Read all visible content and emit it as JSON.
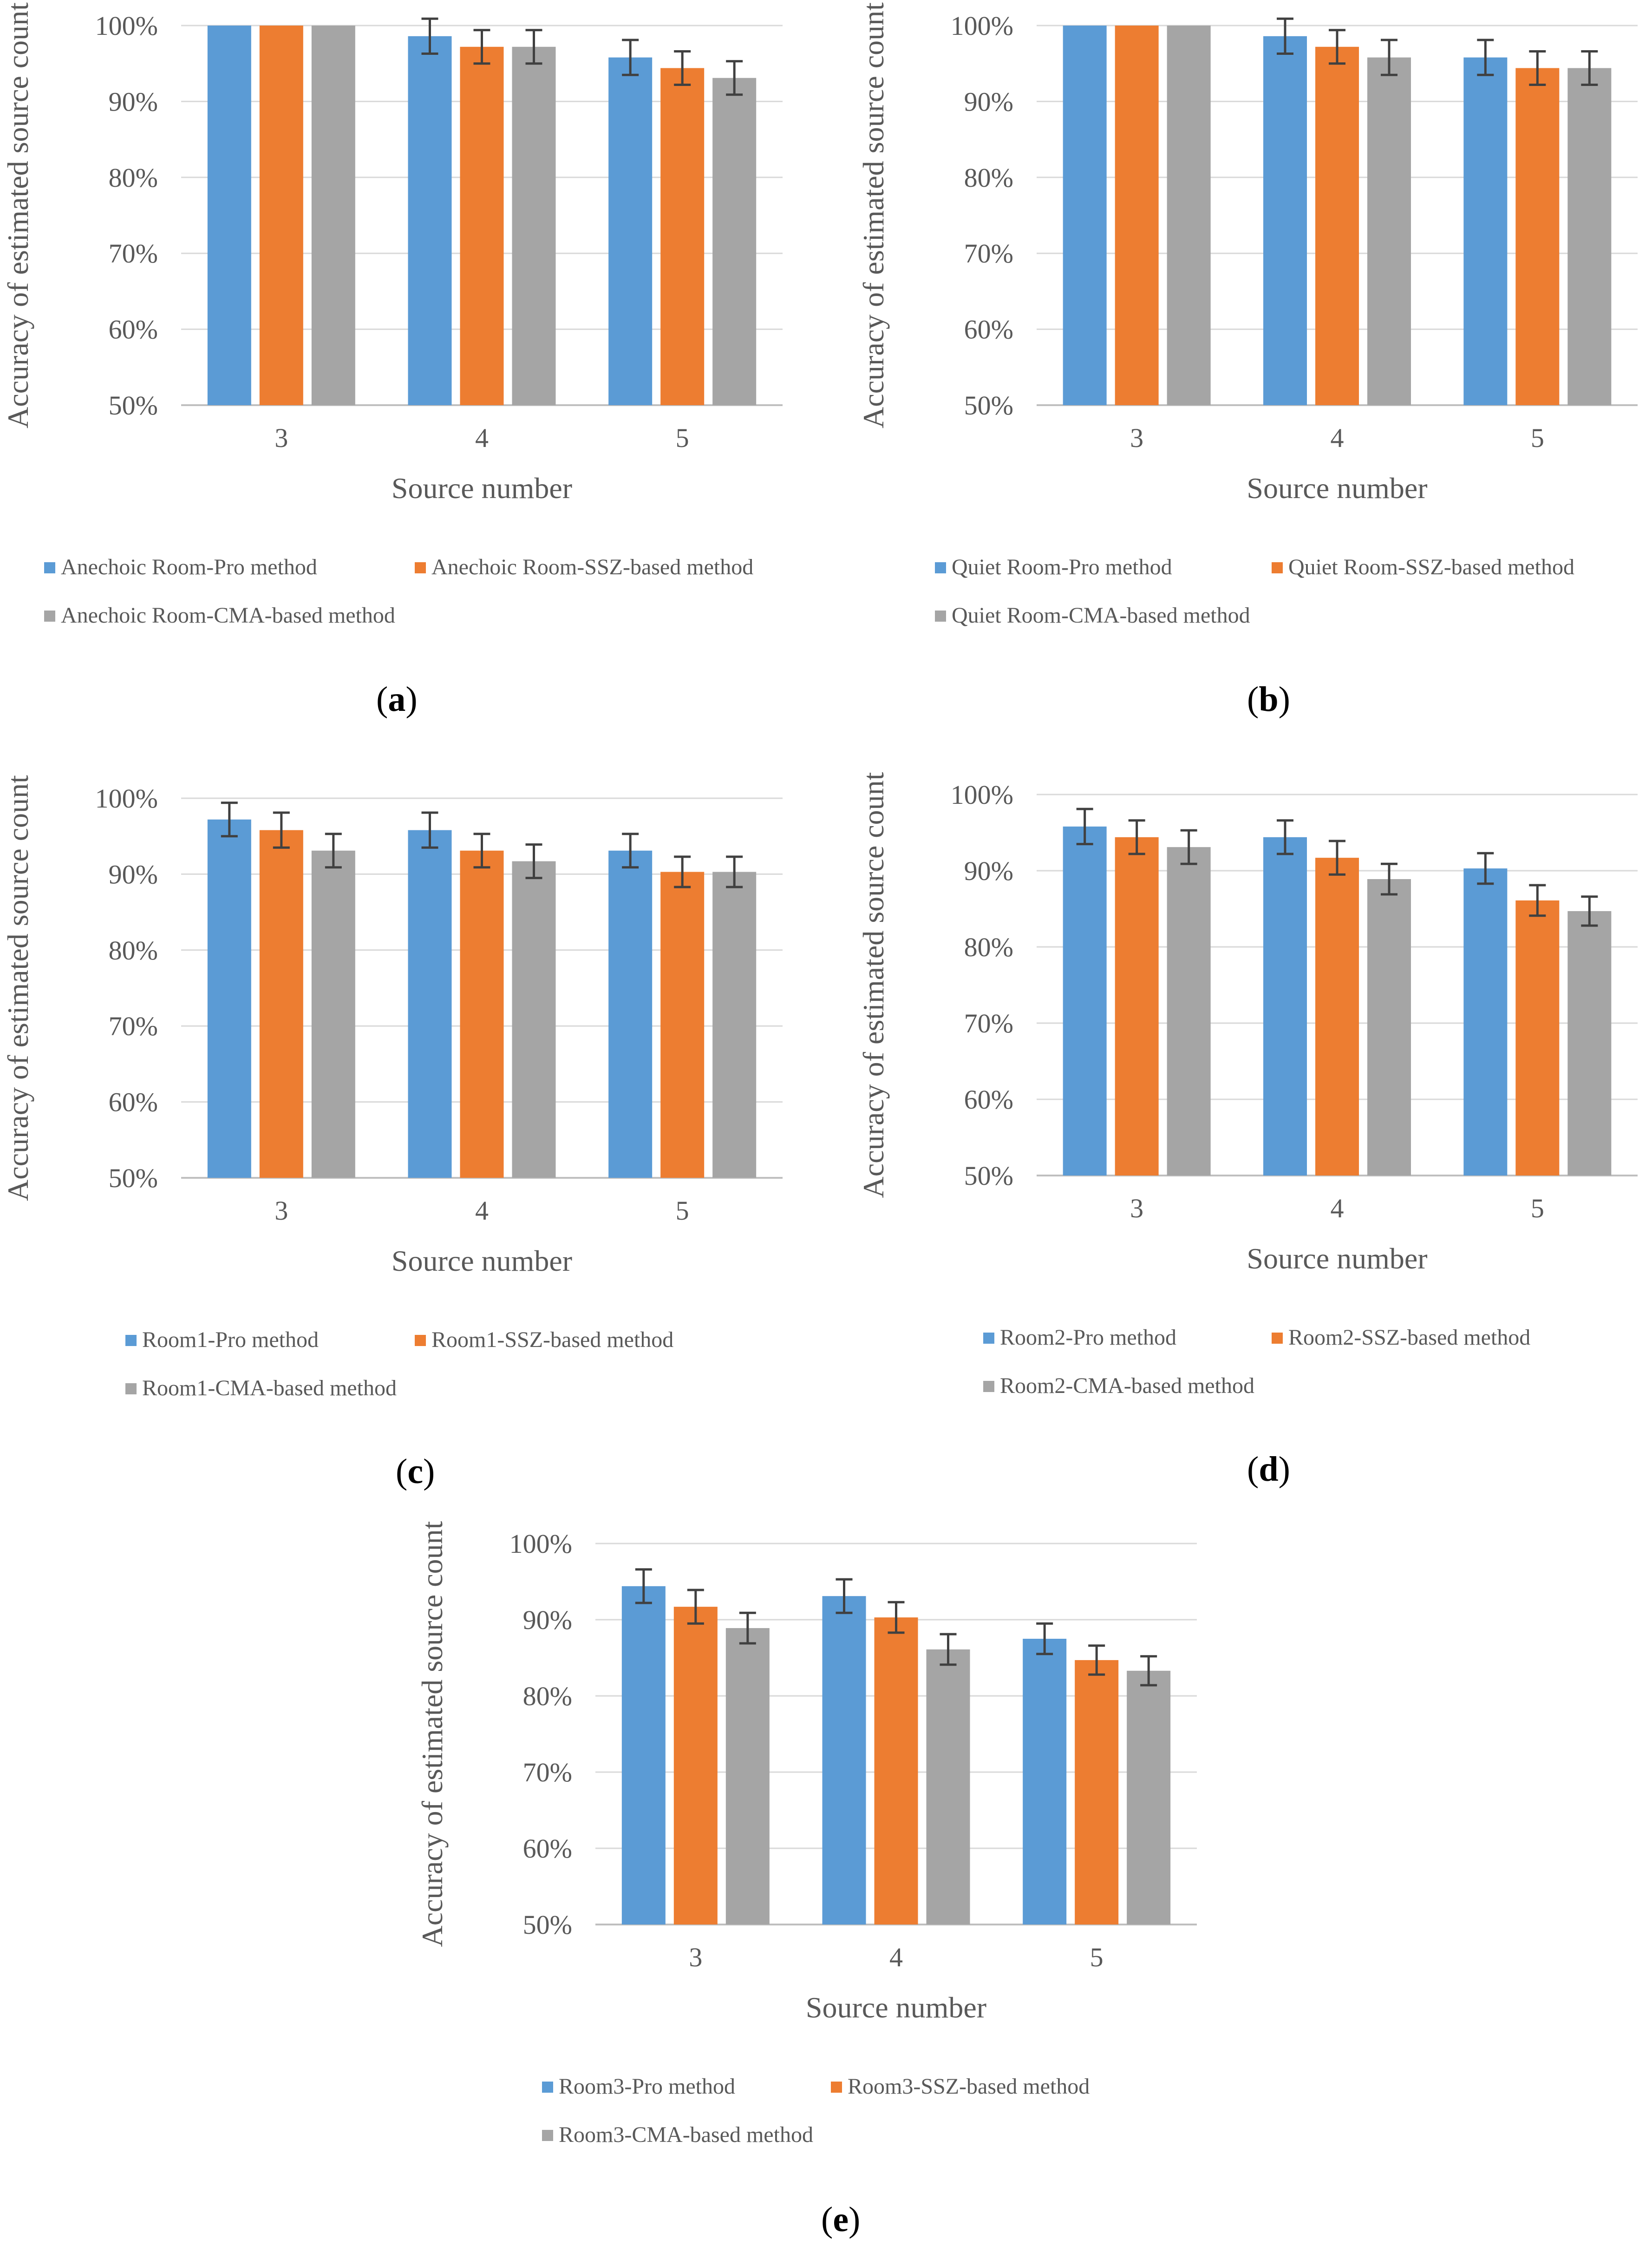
{
  "colors": {
    "pro": "#5b9bd5",
    "ssz": "#ed7d31",
    "cma": "#a5a5a5",
    "grid": "#d9d9d9",
    "errorbar": "#404040"
  },
  "chart_data": [
    {
      "id": "a",
      "type": "bar",
      "panel_label": "a",
      "categories": [
        "3",
        "4",
        "5"
      ],
      "xlabel": "Source number",
      "ylabel": "Accuracy of estimated source count",
      "ylim": [
        50,
        100
      ],
      "yticks": [
        "50%",
        "60%",
        "70%",
        "80%",
        "90%",
        "100%"
      ],
      "series": [
        {
          "name": "Anechoic Room-Pro method",
          "color_key": "pro",
          "values": [
            100,
            98.6,
            95.8
          ],
          "errors": [
            0,
            2.3,
            2.3
          ]
        },
        {
          "name": "Anechoic Room-SSZ-based method",
          "color_key": "ssz",
          "values": [
            100,
            97.2,
            94.4
          ],
          "errors": [
            0,
            2.2,
            2.2
          ]
        },
        {
          "name": "Anechoic Room-CMA-based method",
          "color_key": "cma",
          "values": [
            100,
            97.2,
            93.1
          ],
          "errors": [
            0,
            2.2,
            2.2
          ]
        }
      ]
    },
    {
      "id": "b",
      "type": "bar",
      "panel_label": "b",
      "categories": [
        "3",
        "4",
        "5"
      ],
      "xlabel": "Source number",
      "ylabel": "Accuracy of estimated source count",
      "ylim": [
        50,
        100
      ],
      "yticks": [
        "50%",
        "60%",
        "70%",
        "80%",
        "90%",
        "100%"
      ],
      "series": [
        {
          "name": "Quiet Room-Pro method",
          "color_key": "pro",
          "values": [
            100,
            98.6,
            95.8
          ],
          "errors": [
            0,
            2.3,
            2.3
          ]
        },
        {
          "name": "Quiet Room-SSZ-based method",
          "color_key": "ssz",
          "values": [
            100,
            97.2,
            94.4
          ],
          "errors": [
            0,
            2.2,
            2.2
          ]
        },
        {
          "name": "Quiet Room-CMA-based method",
          "color_key": "cma",
          "values": [
            100,
            95.8,
            94.4
          ],
          "errors": [
            0,
            2.3,
            2.2
          ]
        }
      ]
    },
    {
      "id": "c",
      "type": "bar",
      "panel_label": "c",
      "categories": [
        "3",
        "4",
        "5"
      ],
      "xlabel": "Source number",
      "ylabel": "Accuracy of estimated source count",
      "ylim": [
        50,
        100
      ],
      "yticks": [
        "50%",
        "60%",
        "70%",
        "80%",
        "90%",
        "100%"
      ],
      "series": [
        {
          "name": "Room1-Pro method",
          "color_key": "pro",
          "values": [
            97.2,
            95.8,
            93.1
          ],
          "errors": [
            2.2,
            2.3,
            2.2
          ]
        },
        {
          "name": "Room1-SSZ-based method",
          "color_key": "ssz",
          "values": [
            95.8,
            93.1,
            90.3
          ],
          "errors": [
            2.3,
            2.2,
            2.0
          ]
        },
        {
          "name": "Room1-CMA-based method",
          "color_key": "cma",
          "values": [
            93.1,
            91.7,
            90.3
          ],
          "errors": [
            2.2,
            2.2,
            2.0
          ]
        }
      ]
    },
    {
      "id": "d",
      "type": "bar",
      "panel_label": "d",
      "categories": [
        "3",
        "4",
        "5"
      ],
      "xlabel": "Source number",
      "ylabel": "Accuracy of estimated source count",
      "ylim": [
        50,
        100
      ],
      "yticks": [
        "50%",
        "60%",
        "70%",
        "80%",
        "90%",
        "100%"
      ],
      "series": [
        {
          "name": "Room2-Pro method",
          "color_key": "pro",
          "values": [
            95.8,
            94.4,
            90.3
          ],
          "errors": [
            2.3,
            2.2,
            2.0
          ]
        },
        {
          "name": "Room2-SSZ-based method",
          "color_key": "ssz",
          "values": [
            94.4,
            91.7,
            86.1
          ],
          "errors": [
            2.2,
            2.2,
            2.0
          ]
        },
        {
          "name": "Room2-CMA-based method",
          "color_key": "cma",
          "values": [
            93.1,
            88.9,
            84.7
          ],
          "errors": [
            2.2,
            2.0,
            1.9
          ]
        }
      ]
    },
    {
      "id": "e",
      "type": "bar",
      "panel_label": "e",
      "categories": [
        "3",
        "4",
        "5"
      ],
      "xlabel": "Source number",
      "ylabel": "Accuracy of estimated source count",
      "ylim": [
        50,
        100
      ],
      "yticks": [
        "50%",
        "60%",
        "70%",
        "80%",
        "90%",
        "100%"
      ],
      "series": [
        {
          "name": "Room3-Pro method",
          "color_key": "pro",
          "values": [
            94.4,
            93.1,
            87.5
          ],
          "errors": [
            2.2,
            2.2,
            2.0
          ]
        },
        {
          "name": "Room3-SSZ-based method",
          "color_key": "ssz",
          "values": [
            91.7,
            90.3,
            84.7
          ],
          "errors": [
            2.2,
            2.0,
            1.9
          ]
        },
        {
          "name": "Room3-CMA-based method",
          "color_key": "cma",
          "values": [
            88.9,
            86.1,
            83.3
          ],
          "errors": [
            2.0,
            2.0,
            1.9
          ]
        }
      ]
    }
  ]
}
